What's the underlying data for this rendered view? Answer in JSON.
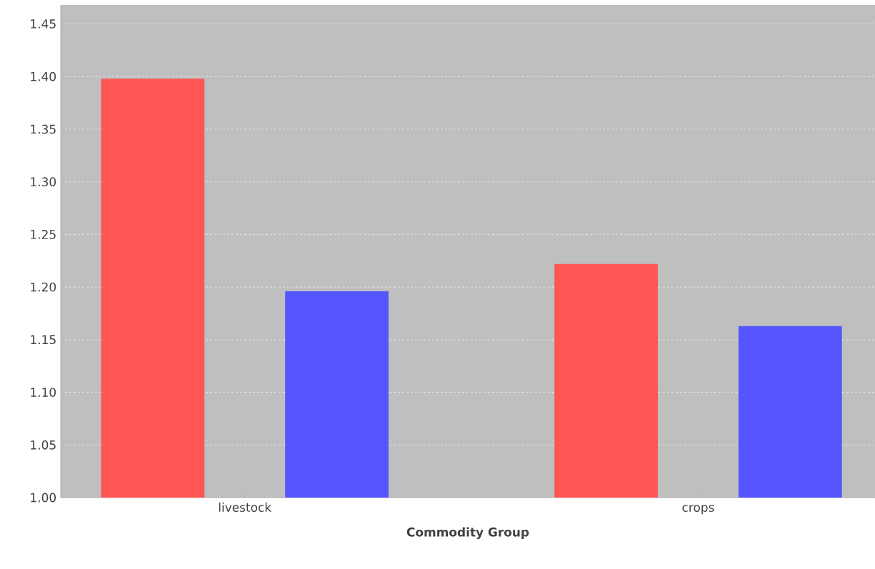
{
  "chart_data": {
    "type": "bar",
    "xlabel": "Commodity Group",
    "categories": [
      "livestock",
      "crops"
    ],
    "series": [
      {
        "color": "#ff5555",
        "values": [
          1.398,
          1.222
        ]
      },
      {
        "color": "#5555ff",
        "values": [
          1.196,
          1.163
        ]
      }
    ],
    "ylim": [
      1.0,
      1.468
    ],
    "yticks": [
      {
        "value": 1.0,
        "label": "1.00"
      },
      1.05,
      {
        "value": 1.1,
        "label": "1.10"
      },
      1.15,
      {
        "value": 1.2,
        "label": "1.20"
      },
      1.25,
      {
        "value": 1.3,
        "label": "1.30"
      },
      1.35,
      {
        "value": 1.4,
        "label": "1.40"
      },
      1.45
    ],
    "grid": "y"
  }
}
